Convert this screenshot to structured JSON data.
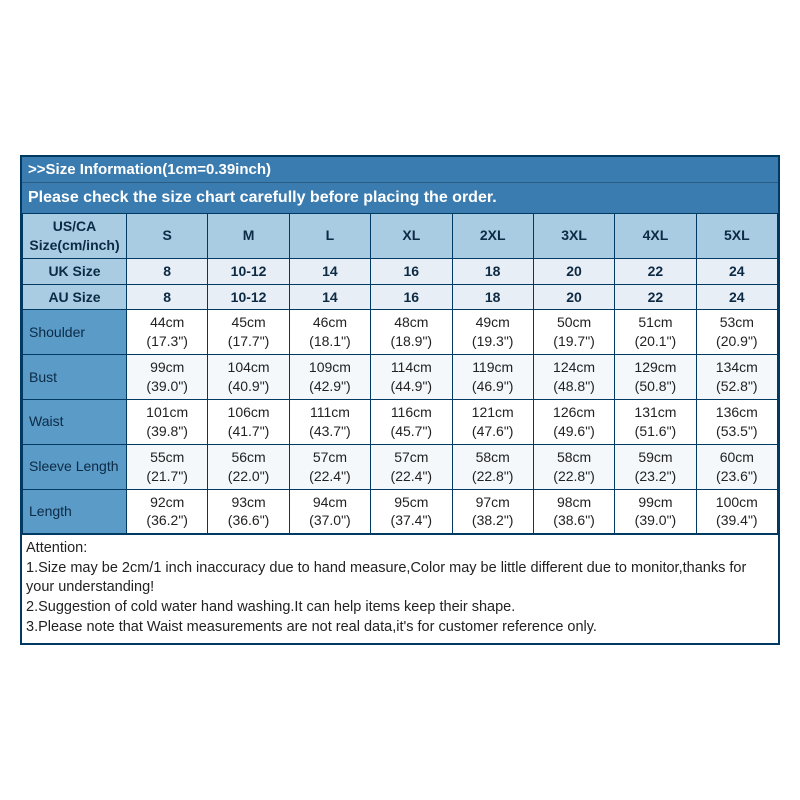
{
  "colors": {
    "border": "#003a63",
    "header_bg": "#3a7cb0",
    "header_text": "#ffffff",
    "label_bg": "#a9cce3",
    "meas_label_bg": "#5a9bc7",
    "row_even_bg": "#f4f8fb",
    "row_odd_bg": "#ffffff",
    "text": "#0c2a44"
  },
  "header": {
    "title": ">>Size Information(1cm=0.39inch)",
    "subtitle": "Please check the size chart carefully before placing the order."
  },
  "columns": {
    "label": "US/CA Size(cm/inch)",
    "sizes": [
      "S",
      "M",
      "L",
      "XL",
      "2XL",
      "3XL",
      "4XL",
      "5XL"
    ]
  },
  "size_rows": [
    {
      "label": "UK Size",
      "vals": [
        "8",
        "10-12",
        "14",
        "16",
        "18",
        "20",
        "22",
        "24"
      ]
    },
    {
      "label": "AU Size",
      "vals": [
        "8",
        "10-12",
        "14",
        "16",
        "18",
        "20",
        "22",
        "24"
      ]
    }
  ],
  "meas_rows": [
    {
      "label": "Shoulder",
      "vals": [
        {
          "cm": "44cm",
          "in": "(17.3\")"
        },
        {
          "cm": "45cm",
          "in": "(17.7\")"
        },
        {
          "cm": "46cm",
          "in": "(18.1\")"
        },
        {
          "cm": "48cm",
          "in": "(18.9\")"
        },
        {
          "cm": "49cm",
          "in": "(19.3\")"
        },
        {
          "cm": "50cm",
          "in": "(19.7\")"
        },
        {
          "cm": "51cm",
          "in": "(20.1\")"
        },
        {
          "cm": "53cm",
          "in": "(20.9\")"
        }
      ]
    },
    {
      "label": "Bust",
      "vals": [
        {
          "cm": "99cm",
          "in": "(39.0\")"
        },
        {
          "cm": "104cm",
          "in": "(40.9\")"
        },
        {
          "cm": "109cm",
          "in": "(42.9\")"
        },
        {
          "cm": "114cm",
          "in": "(44.9\")"
        },
        {
          "cm": "119cm",
          "in": "(46.9\")"
        },
        {
          "cm": "124cm",
          "in": "(48.8\")"
        },
        {
          "cm": "129cm",
          "in": "(50.8\")"
        },
        {
          "cm": "134cm",
          "in": "(52.8\")"
        }
      ]
    },
    {
      "label": "Waist",
      "vals": [
        {
          "cm": "101cm",
          "in": "(39.8\")"
        },
        {
          "cm": "106cm",
          "in": "(41.7\")"
        },
        {
          "cm": "111cm",
          "in": "(43.7\")"
        },
        {
          "cm": "116cm",
          "in": "(45.7\")"
        },
        {
          "cm": "121cm",
          "in": "(47.6\")"
        },
        {
          "cm": "126cm",
          "in": "(49.6\")"
        },
        {
          "cm": "131cm",
          "in": "(51.6\")"
        },
        {
          "cm": "136cm",
          "in": "(53.5\")"
        }
      ]
    },
    {
      "label": "Sleeve Length",
      "vals": [
        {
          "cm": "55cm",
          "in": "(21.7\")"
        },
        {
          "cm": "56cm",
          "in": "(22.0\")"
        },
        {
          "cm": "57cm",
          "in": "(22.4\")"
        },
        {
          "cm": "57cm",
          "in": "(22.4\")"
        },
        {
          "cm": "58cm",
          "in": "(22.8\")"
        },
        {
          "cm": "58cm",
          "in": "(22.8\")"
        },
        {
          "cm": "59cm",
          "in": "(23.2\")"
        },
        {
          "cm": "60cm",
          "in": "(23.6\")"
        }
      ]
    },
    {
      "label": "Length",
      "vals": [
        {
          "cm": "92cm",
          "in": "(36.2\")"
        },
        {
          "cm": "93cm",
          "in": "(36.6\")"
        },
        {
          "cm": "94cm",
          "in": "(37.0\")"
        },
        {
          "cm": "95cm",
          "in": "(37.4\")"
        },
        {
          "cm": "97cm",
          "in": "(38.2\")"
        },
        {
          "cm": "98cm",
          "in": "(38.6\")"
        },
        {
          "cm": "99cm",
          "in": "(39.0\")"
        },
        {
          "cm": "100cm",
          "in": "(39.4\")"
        }
      ]
    }
  ],
  "attention": {
    "title": "Attention:",
    "lines": [
      "1.Size may be 2cm/1 inch inaccuracy due to hand measure,Color may be little different due to monitor,thanks for your understanding!",
      "2.Suggestion of cold water hand washing.It can help items keep their shape.",
      "3.Please note that Waist measurements are not real data,it's for customer reference only."
    ]
  }
}
